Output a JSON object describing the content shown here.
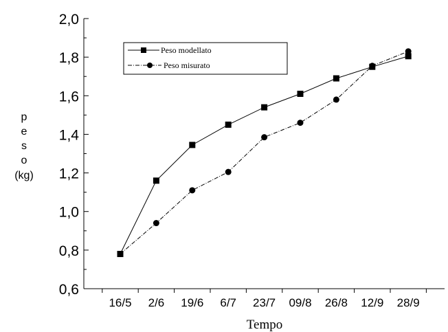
{
  "chart_data": {
    "type": "line",
    "categories": [
      "16/5",
      "2/6",
      "19/6",
      "6/7",
      "23/7",
      "09/8",
      "26/8",
      "12/9",
      "28/9"
    ],
    "series": [
      {
        "name": "Peso modellato",
        "values": [
          0.78,
          1.16,
          1.345,
          1.45,
          1.54,
          1.61,
          1.69,
          1.75,
          1.805
        ],
        "marker": "square",
        "line": "solid",
        "color": "#000000"
      },
      {
        "name": "Peso misurato",
        "values": [
          0.78,
          0.94,
          1.11,
          1.205,
          1.385,
          1.46,
          1.58,
          1.755,
          1.83
        ],
        "marker": "circle",
        "line": "dash-dot",
        "color": "#000000"
      }
    ],
    "xlabel": "Tempo",
    "ylabel_lines": [
      "p",
      "e",
      "s",
      "o",
      "(kg)"
    ],
    "ylim": [
      0.6,
      2.0
    ],
    "yticks": [
      "0,6",
      "0,8",
      "1,0",
      "1,2",
      "1,4",
      "1,6",
      "1,8",
      "2,0"
    ],
    "grid": false,
    "legend_position": "top-left"
  }
}
